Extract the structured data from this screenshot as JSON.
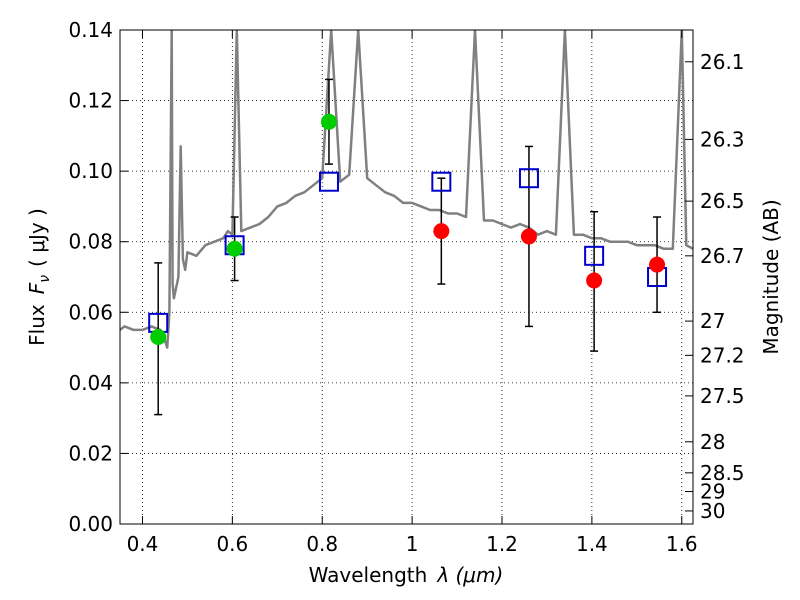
{
  "chart_data": {
    "type": "scatter",
    "title": "",
    "xlabel_text": "Wavelength",
    "xlabel_math": "λ (μm)",
    "ylabel_text": "Flux",
    "ylabel_math": "F",
    "ylabel_sub": "ν",
    "ylabel_unit": "( μJy )",
    "y2label": "Magnitude (AB)",
    "xlim": [
      0.35,
      1.625
    ],
    "ylim": [
      0.0,
      0.14
    ],
    "grid": true,
    "x_ticks": [
      0.4,
      0.6,
      0.8,
      1.0,
      1.2,
      1.4,
      1.6
    ],
    "x_tick_labels": [
      "0.4",
      "0.6",
      "0.8",
      "1",
      "1.2",
      "1.4",
      "1.6"
    ],
    "y_ticks": [
      0.0,
      0.02,
      0.04,
      0.06,
      0.08,
      0.1,
      0.12,
      0.14
    ],
    "y_tick_labels": [
      "0.00",
      "0.02",
      "0.04",
      "0.06",
      "0.08",
      "0.10",
      "0.12",
      "0.14"
    ],
    "y2_ticks": [
      {
        "label": "26.1",
        "flux": 0.131
      },
      {
        "label": "26.3",
        "flux": 0.109
      },
      {
        "label": "26.5",
        "flux": 0.0915
      },
      {
        "label": "26.7",
        "flux": 0.076
      },
      {
        "label": "27",
        "flux": 0.0575
      },
      {
        "label": "27.2",
        "flux": 0.0478
      },
      {
        "label": "27.5",
        "flux": 0.0363
      },
      {
        "label": "28",
        "flux": 0.0233
      },
      {
        "label": "28.5",
        "flux": 0.0145
      },
      {
        "label": "29",
        "flux": 0.0092
      },
      {
        "label": "30",
        "flux": 0.0037
      }
    ],
    "series": [
      {
        "name": "",
        "kind": "spectrum",
        "color": "#808080",
        "x": [
          0.35,
          0.36,
          0.38,
          0.4,
          0.42,
          0.44,
          0.45,
          0.455,
          0.46,
          0.465,
          0.467,
          0.47,
          0.48,
          0.485,
          0.49,
          0.495,
          0.5,
          0.52,
          0.54,
          0.56,
          0.58,
          0.59,
          0.6,
          0.61,
          0.62,
          0.64,
          0.66,
          0.68,
          0.7,
          0.72,
          0.74,
          0.76,
          0.78,
          0.8,
          0.82,
          0.84,
          0.86,
          0.88,
          0.9,
          0.92,
          0.94,
          0.96,
          0.98,
          1.0,
          1.02,
          1.04,
          1.06,
          1.08,
          1.1,
          1.12,
          1.14,
          1.16,
          1.18,
          1.2,
          1.22,
          1.24,
          1.26,
          1.28,
          1.3,
          1.32,
          1.34,
          1.36,
          1.38,
          1.4,
          1.42,
          1.44,
          1.46,
          1.48,
          1.5,
          1.52,
          1.54,
          1.56,
          1.58,
          1.6,
          1.61,
          1.625
        ],
        "y": [
          0.055,
          0.056,
          0.055,
          0.055,
          0.056,
          0.055,
          0.052,
          0.05,
          0.06,
          0.14,
          0.068,
          0.064,
          0.07,
          0.107,
          0.075,
          0.072,
          0.077,
          0.076,
          0.079,
          0.08,
          0.081,
          0.083,
          0.082,
          0.14,
          0.083,
          0.084,
          0.085,
          0.087,
          0.09,
          0.091,
          0.093,
          0.094,
          0.096,
          0.098,
          0.14,
          0.097,
          0.099,
          0.14,
          0.098,
          0.096,
          0.094,
          0.093,
          0.091,
          0.091,
          0.09,
          0.089,
          0.089,
          0.088,
          0.088,
          0.087,
          0.14,
          0.086,
          0.086,
          0.085,
          0.084,
          0.085,
          0.084,
          0.082,
          0.083,
          0.082,
          0.14,
          0.082,
          0.082,
          0.081,
          0.081,
          0.08,
          0.08,
          0.08,
          0.079,
          0.079,
          0.079,
          0.078,
          0.078,
          0.14,
          0.079,
          0.078
        ]
      },
      {
        "name": "",
        "kind": "model",
        "color": "#0000cc",
        "marker": "open-square",
        "x": [
          0.435,
          0.605,
          0.815,
          1.065,
          1.26,
          1.405,
          1.545
        ],
        "y": [
          0.057,
          0.079,
          0.097,
          0.097,
          0.098,
          0.076,
          0.07
        ]
      },
      {
        "name": "",
        "kind": "observed",
        "color": "#00cc00",
        "marker": "filled-circle",
        "x": [
          0.435,
          0.605,
          0.815
        ],
        "y": [
          0.053,
          0.078,
          0.114
        ],
        "yerr_low": [
          0.031,
          0.069,
          0.102
        ],
        "yerr_high": [
          0.074,
          0.087,
          0.126
        ]
      },
      {
        "name": "",
        "kind": "observed",
        "color": "#ff0000",
        "marker": "filled-circle",
        "x": [
          1.065,
          1.26,
          1.405,
          1.545
        ],
        "y": [
          0.083,
          0.0815,
          0.069,
          0.0735
        ],
        "yerr_low": [
          0.068,
          0.056,
          0.049,
          0.06
        ],
        "yerr_high": [
          0.098,
          0.107,
          0.0885,
          0.087
        ]
      }
    ]
  }
}
